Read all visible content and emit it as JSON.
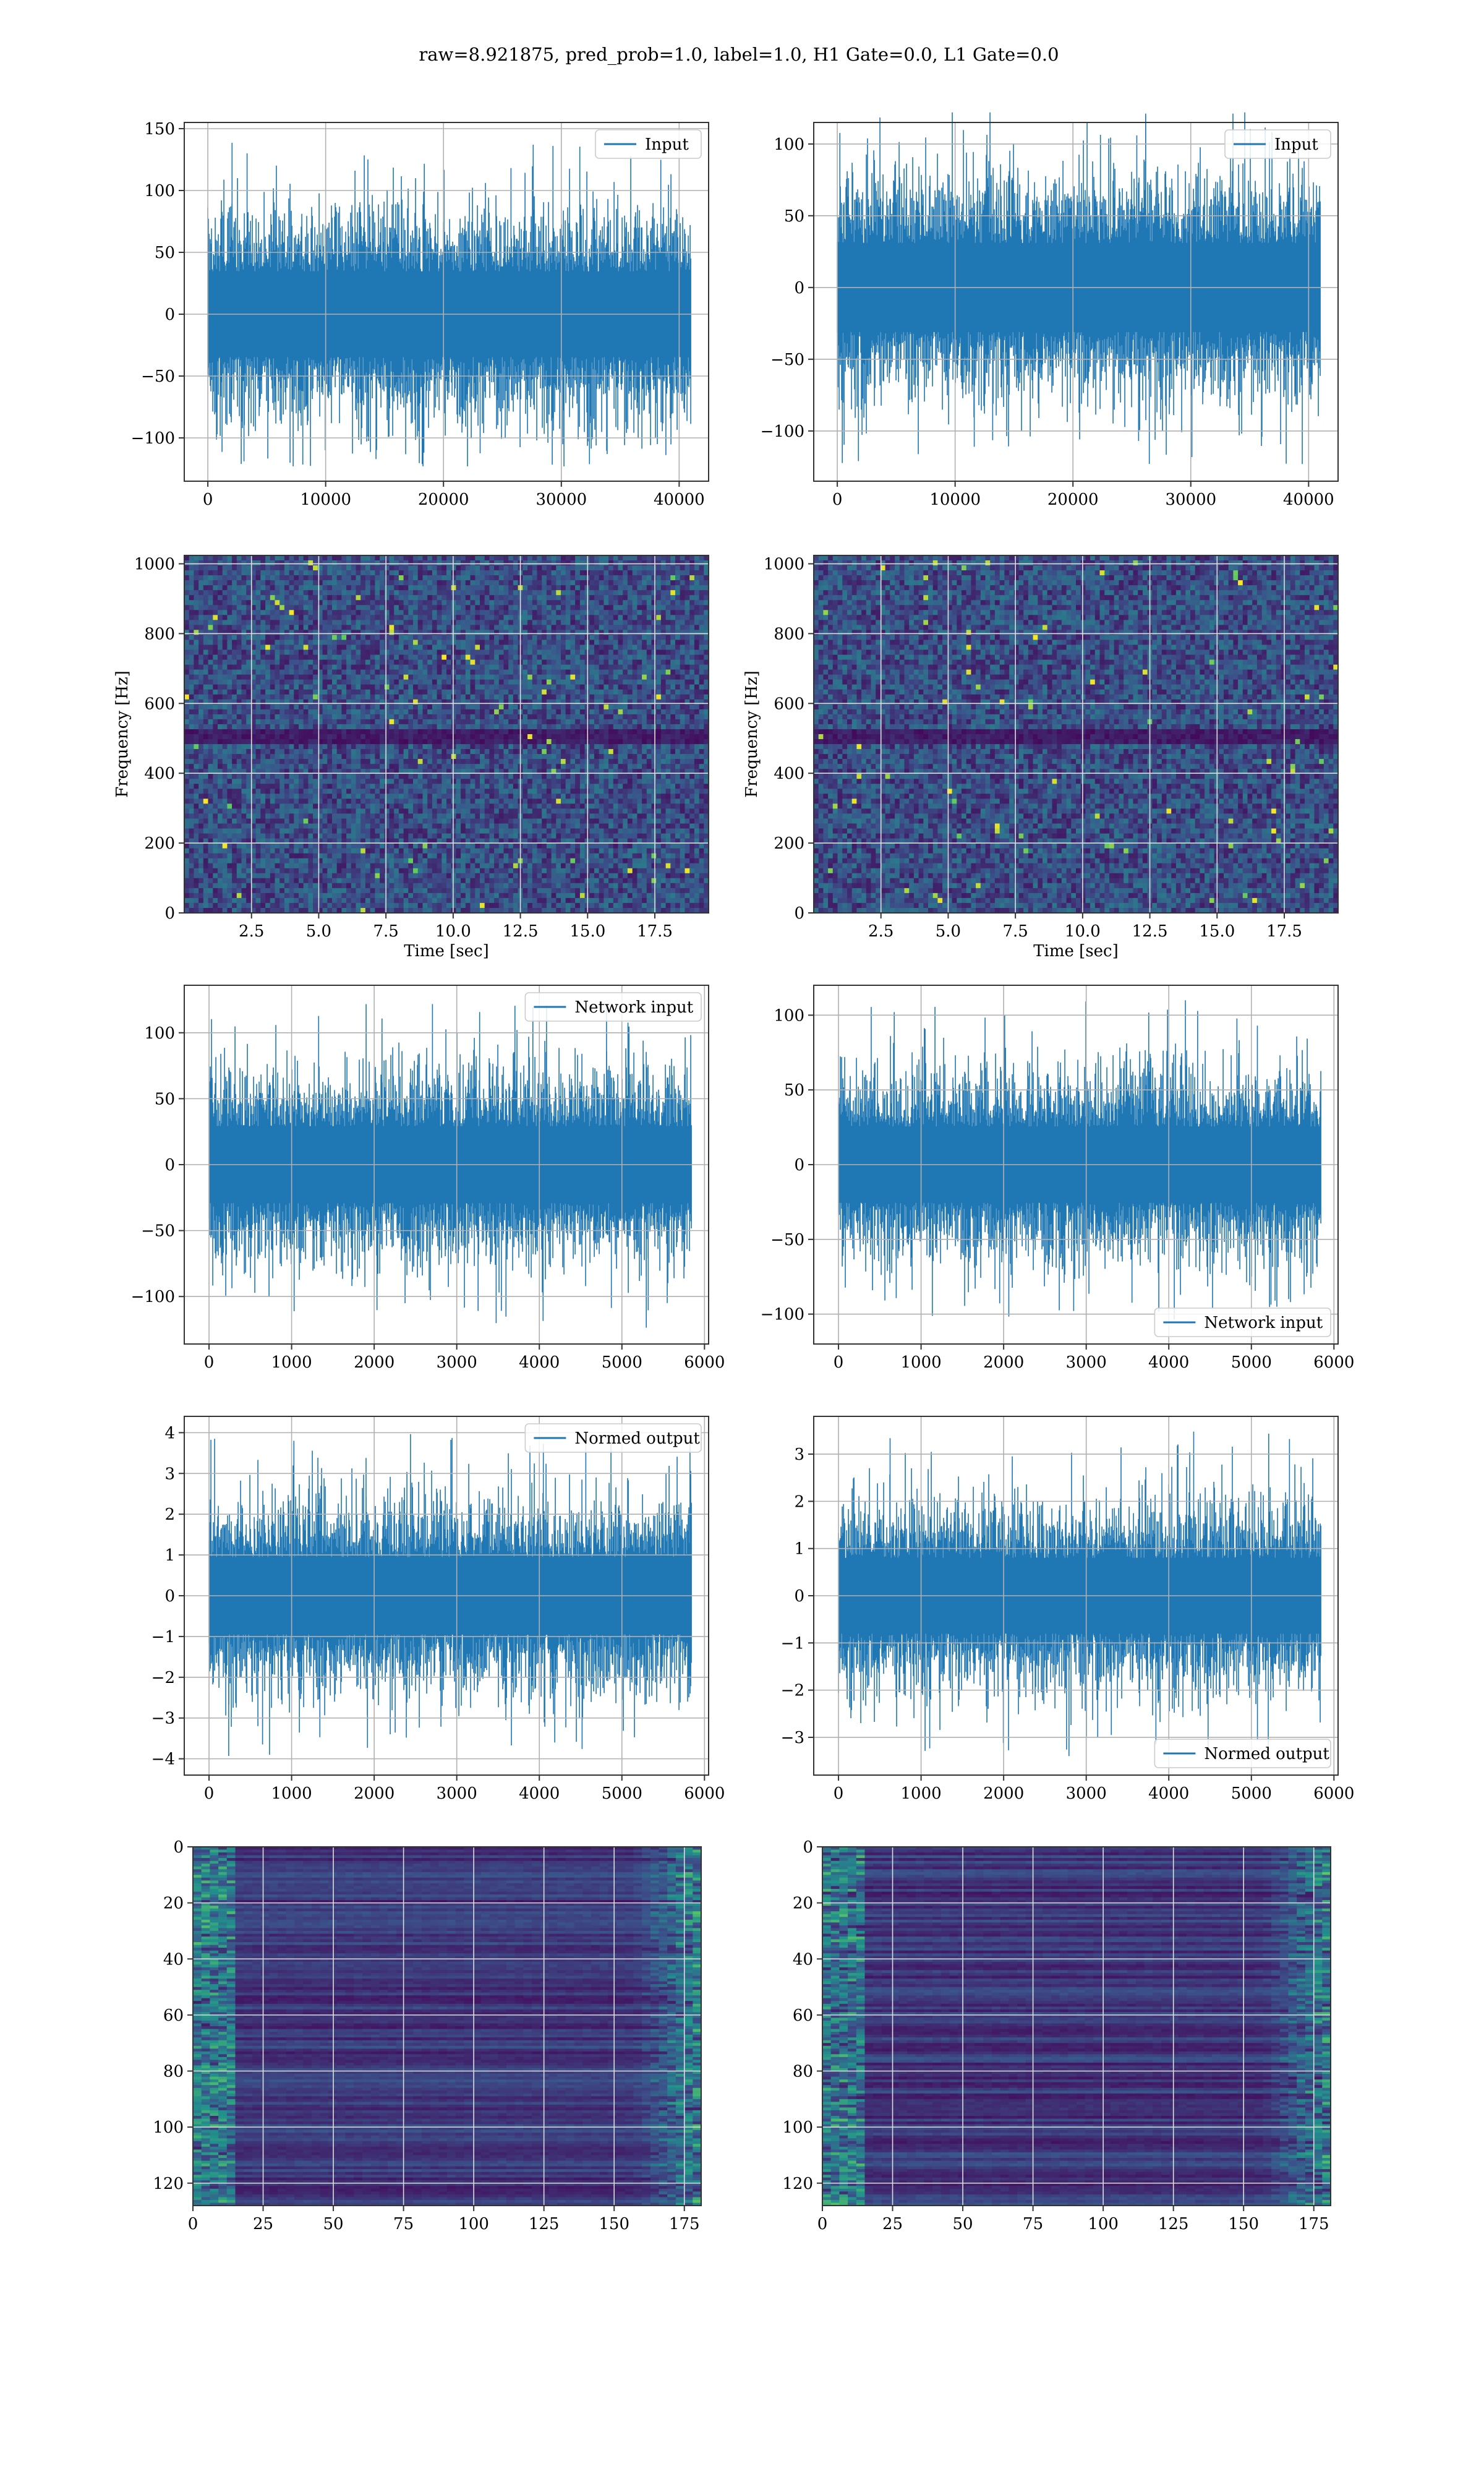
{
  "figure": {
    "suptitle": "raw=8.921875, pred_prob=1.0, label=1.0, H1 Gate=0.0, L1 Gate=0.0"
  },
  "colors": {
    "line": "#1f77b4",
    "grid": "#b0b0b0",
    "spine": "#333333",
    "viridis_low": "#440154",
    "viridis_mid": "#21918c",
    "viridis_high": "#fde725"
  },
  "chart_data": [
    {
      "id": "input_left",
      "type": "line",
      "title": "",
      "xlabel": "",
      "ylabel": "",
      "legend": {
        "entries": [
          "Input"
        ],
        "placement": "upper right"
      },
      "xlim": [
        -2000,
        42500
      ],
      "ylim": [
        -135,
        155
      ],
      "xticks": [
        0,
        10000,
        20000,
        30000,
        40000
      ],
      "yticks": [
        -100,
        -50,
        0,
        50,
        100,
        150
      ],
      "n_samples": 40960,
      "series": [
        {
          "x_range": [
            0,
            40960
          ],
          "envelope_upper": 95,
          "envelope_lower": -95,
          "peak_max": 140,
          "peak_min": -123
        }
      ],
      "grid": true
    },
    {
      "id": "input_right",
      "type": "line",
      "title": "",
      "xlabel": "",
      "ylabel": "",
      "legend": {
        "entries": [
          "Input"
        ],
        "placement": "upper right"
      },
      "xlim": [
        -2000,
        42500
      ],
      "ylim": [
        -135,
        115
      ],
      "xticks": [
        0,
        10000,
        20000,
        30000,
        40000
      ],
      "yticks": [
        -100,
        -50,
        0,
        50,
        100
      ],
      "n_samples": 40960,
      "series": [
        {
          "x_range": [
            0,
            40960
          ],
          "envelope_upper": 85,
          "envelope_lower": -85,
          "peak_max": 122,
          "peak_min": -123
        }
      ],
      "grid": true
    },
    {
      "id": "spectrogram_left",
      "type": "heatmap",
      "title": "",
      "xlabel": "Time [sec]",
      "ylabel": "Frequency [Hz]",
      "xlim": [
        0,
        19.5
      ],
      "ylim": [
        0,
        1024
      ],
      "xticks": [
        2.5,
        5.0,
        7.5,
        10.0,
        12.5,
        15.0,
        17.5
      ],
      "yticks": [
        0,
        200,
        400,
        600,
        800,
        1000
      ],
      "colormap": "viridis",
      "grid": true,
      "features": {
        "dark_band_hz": [
          480,
          520
        ]
      }
    },
    {
      "id": "spectrogram_right",
      "type": "heatmap",
      "title": "",
      "xlabel": "Time [sec]",
      "ylabel": "Frequency [Hz]",
      "xlim": [
        0,
        19.5
      ],
      "ylim": [
        0,
        1024
      ],
      "xticks": [
        2.5,
        5.0,
        7.5,
        10.0,
        12.5,
        15.0,
        17.5
      ],
      "yticks": [
        0,
        200,
        400,
        600,
        800,
        1000
      ],
      "colormap": "viridis",
      "grid": true,
      "features": {
        "dark_band_hz": [
          480,
          520
        ]
      }
    },
    {
      "id": "network_input_left",
      "type": "line",
      "title": "",
      "xlabel": "",
      "ylabel": "",
      "legend": {
        "entries": [
          "Network input"
        ],
        "placement": "upper right"
      },
      "xlim": [
        -300,
        6050
      ],
      "ylim": [
        -136,
        136
      ],
      "xticks": [
        0,
        1000,
        2000,
        3000,
        4000,
        5000,
        6000
      ],
      "yticks": [
        -100,
        -50,
        0,
        50,
        100
      ],
      "n_samples": 5840,
      "series": [
        {
          "x_range": [
            0,
            5840
          ],
          "envelope_upper": 80,
          "envelope_lower": -80,
          "peak_max": 125,
          "peak_min": -125
        }
      ],
      "grid": true
    },
    {
      "id": "network_input_right",
      "type": "line",
      "title": "",
      "xlabel": "",
      "ylabel": "",
      "legend": {
        "entries": [
          "Network input"
        ],
        "placement": "lower right"
      },
      "xlim": [
        -300,
        6050
      ],
      "ylim": [
        -120,
        120
      ],
      "xticks": [
        0,
        1000,
        2000,
        3000,
        4000,
        5000,
        6000
      ],
      "yticks": [
        -100,
        -50,
        0,
        50,
        100
      ],
      "n_samples": 5840,
      "series": [
        {
          "x_range": [
            0,
            5840
          ],
          "envelope_upper": 70,
          "envelope_lower": -70,
          "peak_max": 110,
          "peak_min": -108
        }
      ],
      "grid": true
    },
    {
      "id": "normed_output_left",
      "type": "line",
      "title": "",
      "xlabel": "",
      "ylabel": "",
      "legend": {
        "entries": [
          "Normed output"
        ],
        "placement": "upper right"
      },
      "xlim": [
        -300,
        6050
      ],
      "ylim": [
        -4.4,
        4.4
      ],
      "xticks": [
        0,
        1000,
        2000,
        3000,
        4000,
        5000,
        6000
      ],
      "yticks": [
        -4,
        -3,
        -2,
        -1,
        0,
        1,
        2,
        3,
        4
      ],
      "n_samples": 5840,
      "series": [
        {
          "x_range": [
            0,
            5840
          ],
          "envelope_upper": 2.6,
          "envelope_lower": -2.6,
          "peak_max": 4.0,
          "peak_min": -3.95
        }
      ],
      "grid": true
    },
    {
      "id": "normed_output_right",
      "type": "line",
      "title": "",
      "xlabel": "",
      "ylabel": "",
      "legend": {
        "entries": [
          "Normed output"
        ],
        "placement": "lower right"
      },
      "xlim": [
        -300,
        6050
      ],
      "ylim": [
        -3.8,
        3.8
      ],
      "xticks": [
        0,
        1000,
        2000,
        3000,
        4000,
        5000,
        6000
      ],
      "yticks": [
        -3,
        -2,
        -1,
        0,
        1,
        2,
        3
      ],
      "n_samples": 5840,
      "series": [
        {
          "x_range": [
            0,
            5840
          ],
          "envelope_upper": 2.2,
          "envelope_lower": -2.2,
          "peak_max": 3.5,
          "peak_min": -3.4
        }
      ],
      "grid": true
    },
    {
      "id": "feature_map_left",
      "type": "heatmap",
      "title": "",
      "xlabel": "",
      "ylabel": "",
      "xlim": [
        0,
        181
      ],
      "ylim": [
        128,
        0
      ],
      "xticks": [
        0,
        25,
        50,
        75,
        100,
        125,
        150,
        175
      ],
      "yticks": [
        0,
        20,
        40,
        60,
        80,
        100,
        120
      ],
      "rows": 128,
      "cols": 181,
      "colormap": "viridis",
      "grid": true
    },
    {
      "id": "feature_map_right",
      "type": "heatmap",
      "title": "",
      "xlabel": "",
      "ylabel": "",
      "xlim": [
        0,
        181
      ],
      "ylim": [
        128,
        0
      ],
      "xticks": [
        0,
        25,
        50,
        75,
        100,
        125,
        150,
        175
      ],
      "yticks": [
        0,
        20,
        40,
        60,
        80,
        100,
        120
      ],
      "rows": 128,
      "cols": 181,
      "colormap": "viridis",
      "grid": true
    }
  ]
}
